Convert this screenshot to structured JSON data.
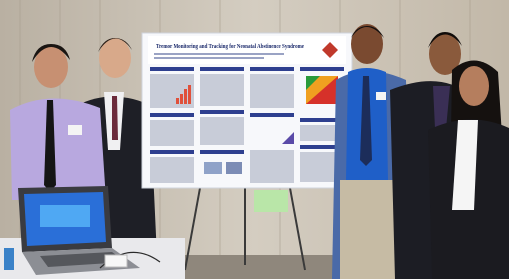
{
  "poster": {
    "title": "Tremor Monitoring and Tracking for Neonatal Abstinence Syndrome"
  }
}
